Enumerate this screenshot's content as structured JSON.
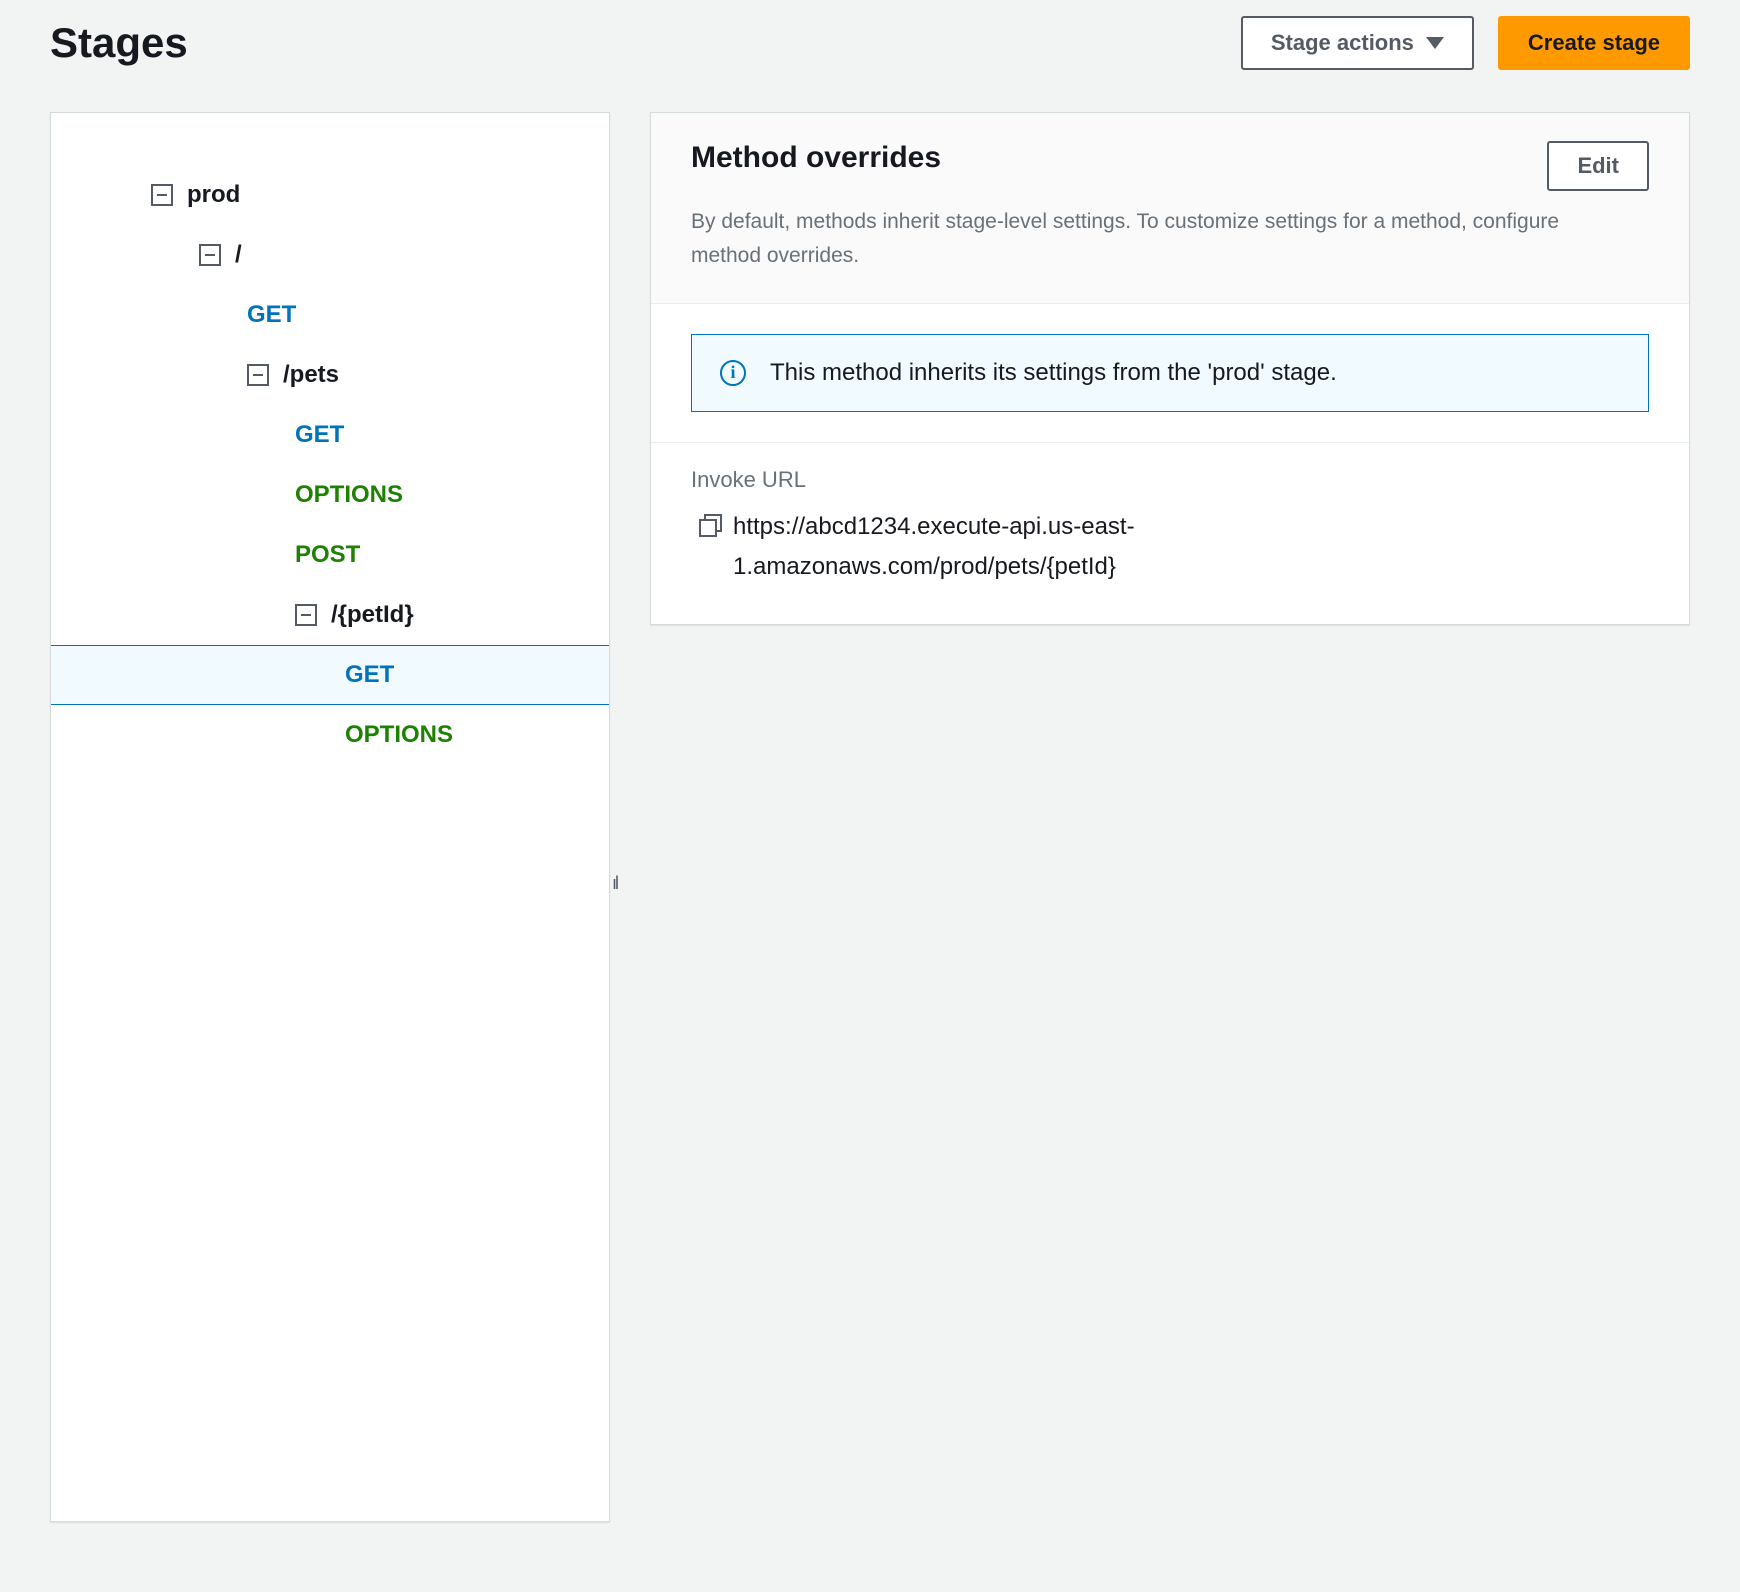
{
  "header": {
    "title": "Stages",
    "stage_actions_label": "Stage actions",
    "create_stage_label": "Create stage"
  },
  "colors": {
    "page_bg": "#f2f3f3",
    "panel_bg": "#ffffff",
    "panel_border": "#d5dbdb",
    "text_primary": "#16191f",
    "text_muted": "#687078",
    "accent_blue": "#0073bb",
    "selected_bg": "#f1faff",
    "method_get": "#0073bb",
    "method_options": "#1d8102",
    "method_post": "#1d8102",
    "btn_primary_bg": "#ff9900",
    "btn_secondary_border": "#545b64",
    "header_bg": "#fafafa",
    "divider": "#eaeded"
  },
  "tree": {
    "rows": [
      {
        "indent": 0,
        "collapsible": true,
        "label": "prod",
        "kind": "stage"
      },
      {
        "indent": 1,
        "collapsible": true,
        "label": "/",
        "kind": "resource"
      },
      {
        "indent": 2,
        "collapsible": false,
        "label": "GET",
        "kind": "method-get"
      },
      {
        "indent": 2,
        "collapsible": true,
        "label": "/pets",
        "kind": "resource"
      },
      {
        "indent": 3,
        "collapsible": false,
        "label": "GET",
        "kind": "method-get"
      },
      {
        "indent": 3,
        "collapsible": false,
        "label": "OPTIONS",
        "kind": "method-options"
      },
      {
        "indent": 3,
        "collapsible": false,
        "label": "POST",
        "kind": "method-post"
      },
      {
        "indent": 3,
        "collapsible": true,
        "label": "/{petId}",
        "kind": "resource"
      },
      {
        "indent": 4,
        "collapsible": false,
        "label": "GET",
        "kind": "method-get",
        "selected": true
      },
      {
        "indent": 4,
        "collapsible": false,
        "label": "OPTIONS",
        "kind": "method-options"
      }
    ]
  },
  "detail": {
    "title": "Method overrides",
    "edit_label": "Edit",
    "description": "By default, methods inherit stage-level settings. To customize settings for a method, configure method overrides.",
    "info_message": "This method inherits its settings from the 'prod' stage.",
    "invoke_url_label": "Invoke URL",
    "invoke_url": "https://abcd1234.execute-api.us-east-1.amazonaws.com/prod/pets/{petId}"
  }
}
